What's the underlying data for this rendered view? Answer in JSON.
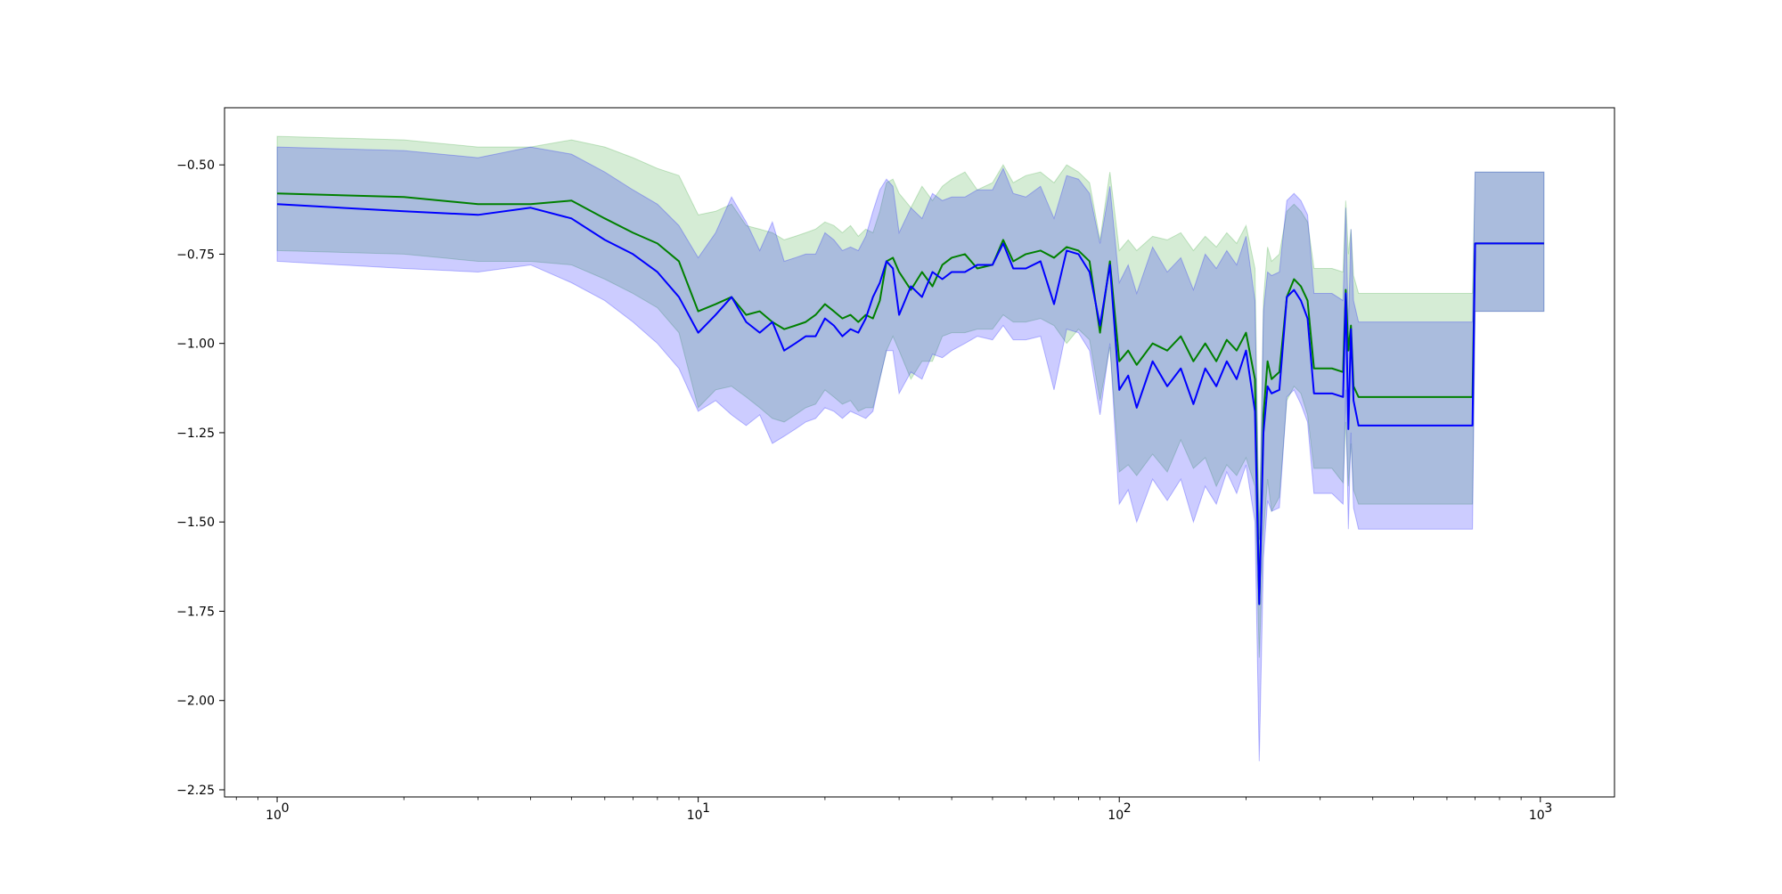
{
  "chart_data": {
    "type": "line",
    "title": "",
    "xlabel": "",
    "ylabel": "",
    "xscale": "log",
    "xlim": [
      0.75,
      1500
    ],
    "ylim": [
      -2.27,
      -0.34
    ],
    "grid": false,
    "legend": "none",
    "x_ticks": [
      {
        "value": 1,
        "base": "10",
        "exp": "0"
      },
      {
        "value": 10,
        "base": "10",
        "exp": "1"
      },
      {
        "value": 100,
        "base": "10",
        "exp": "2"
      },
      {
        "value": 1000,
        "base": "10",
        "exp": "3"
      }
    ],
    "y_ticks": [
      {
        "value": -0.5,
        "label": "−0.50"
      },
      {
        "value": -0.75,
        "label": "−0.75"
      },
      {
        "value": -1.0,
        "label": "−1.00"
      },
      {
        "value": -1.25,
        "label": "−1.25"
      },
      {
        "value": -1.5,
        "label": "−1.50"
      },
      {
        "value": -1.75,
        "label": "−1.75"
      },
      {
        "value": -2.0,
        "label": "−2.00"
      },
      {
        "value": -2.25,
        "label": "−2.25"
      }
    ],
    "series": [
      {
        "color": "#008000",
        "band_color": "#2ca02c",
        "x": [
          1,
          2,
          3,
          4,
          5,
          6,
          7,
          8,
          9,
          10,
          11,
          12,
          13,
          14,
          15,
          16,
          17,
          18,
          19,
          20,
          21,
          22,
          23,
          24,
          25,
          26,
          27,
          28,
          29,
          30,
          32,
          34,
          36,
          38,
          40,
          43,
          46,
          50,
          53,
          56,
          60,
          65,
          70,
          75,
          80,
          85,
          90,
          95,
          100,
          105,
          110,
          120,
          130,
          140,
          150,
          160,
          170,
          180,
          190,
          200,
          210,
          215,
          220,
          225,
          230,
          240,
          250,
          260,
          270,
          280,
          290,
          300,
          320,
          340,
          345,
          350,
          355,
          360,
          370,
          380,
          690,
          700,
          1020
        ],
        "y": [
          -0.58,
          -0.59,
          -0.61,
          -0.61,
          -0.6,
          -0.65,
          -0.69,
          -0.72,
          -0.77,
          -0.91,
          -0.89,
          -0.87,
          -0.92,
          -0.91,
          -0.94,
          -0.96,
          -0.95,
          -0.94,
          -0.92,
          -0.89,
          -0.91,
          -0.93,
          -0.92,
          -0.94,
          -0.92,
          -0.93,
          -0.88,
          -0.77,
          -0.76,
          -0.8,
          -0.85,
          -0.8,
          -0.84,
          -0.78,
          -0.76,
          -0.75,
          -0.79,
          -0.78,
          -0.71,
          -0.77,
          -0.75,
          -0.74,
          -0.76,
          -0.73,
          -0.74,
          -0.77,
          -0.97,
          -0.77,
          -1.05,
          -1.02,
          -1.06,
          -1.0,
          -1.02,
          -0.98,
          -1.05,
          -1.0,
          -1.05,
          -0.99,
          -1.02,
          -0.97,
          -1.1,
          -1.73,
          -1.2,
          -1.05,
          -1.1,
          -1.08,
          -0.87,
          -0.82,
          -0.84,
          -0.88,
          -1.07,
          -1.07,
          -1.07,
          -1.08,
          -0.85,
          -1.02,
          -0.95,
          -1.12,
          -1.15,
          -1.15,
          -1.15,
          -0.72,
          -0.72
        ],
        "lower": [
          -0.74,
          -0.75,
          -0.77,
          -0.77,
          -0.78,
          -0.82,
          -0.86,
          -0.9,
          -0.97,
          -1.18,
          -1.13,
          -1.12,
          -1.15,
          -1.18,
          -1.21,
          -1.22,
          -1.2,
          -1.18,
          -1.17,
          -1.13,
          -1.15,
          -1.17,
          -1.16,
          -1.19,
          -1.18,
          -1.18,
          -1.1,
          -1.02,
          -0.98,
          -1.02,
          -1.1,
          -1.05,
          -1.05,
          -0.98,
          -0.97,
          -0.97,
          -0.96,
          -0.96,
          -0.92,
          -0.94,
          -0.94,
          -0.93,
          -0.95,
          -1.0,
          -0.96,
          -0.99,
          -1.16,
          -1.01,
          -1.36,
          -1.34,
          -1.37,
          -1.31,
          -1.36,
          -1.27,
          -1.35,
          -1.32,
          -1.4,
          -1.34,
          -1.37,
          -1.32,
          -1.4,
          -1.88,
          -1.53,
          -1.38,
          -1.47,
          -1.43,
          -1.16,
          -1.12,
          -1.14,
          -1.2,
          -1.35,
          -1.35,
          -1.35,
          -1.39,
          -1.22,
          -1.4,
          -1.28,
          -1.41,
          -1.45,
          -1.45,
          -1.45,
          -0.91,
          -0.91
        ],
        "upper": [
          -0.42,
          -0.43,
          -0.45,
          -0.45,
          -0.43,
          -0.45,
          -0.48,
          -0.51,
          -0.53,
          -0.64,
          -0.63,
          -0.61,
          -0.67,
          -0.68,
          -0.69,
          -0.71,
          -0.7,
          -0.69,
          -0.68,
          -0.66,
          -0.67,
          -0.69,
          -0.67,
          -0.7,
          -0.68,
          -0.69,
          -0.63,
          -0.55,
          -0.54,
          -0.58,
          -0.62,
          -0.56,
          -0.6,
          -0.56,
          -0.54,
          -0.52,
          -0.57,
          -0.55,
          -0.5,
          -0.55,
          -0.53,
          -0.52,
          -0.55,
          -0.5,
          -0.52,
          -0.55,
          -0.71,
          -0.52,
          -0.74,
          -0.71,
          -0.74,
          -0.7,
          -0.71,
          -0.69,
          -0.74,
          -0.7,
          -0.73,
          -0.69,
          -0.72,
          -0.67,
          -0.79,
          -1.55,
          -0.88,
          -0.73,
          -0.77,
          -0.75,
          -0.63,
          -0.61,
          -0.63,
          -0.66,
          -0.79,
          -0.79,
          -0.79,
          -0.8,
          -0.6,
          -0.75,
          -0.68,
          -0.81,
          -0.86,
          -0.86,
          -0.86,
          -0.52,
          -0.52
        ]
      },
      {
        "color": "#0000ff",
        "band_color": "#0000ff",
        "x": [
          1,
          2,
          3,
          4,
          5,
          6,
          7,
          8,
          9,
          10,
          11,
          12,
          13,
          14,
          15,
          16,
          17,
          18,
          19,
          20,
          21,
          22,
          23,
          24,
          25,
          26,
          27,
          28,
          29,
          30,
          32,
          34,
          36,
          38,
          40,
          43,
          46,
          50,
          53,
          56,
          60,
          65,
          70,
          75,
          80,
          85,
          90,
          95,
          100,
          105,
          110,
          120,
          130,
          140,
          150,
          160,
          170,
          180,
          190,
          200,
          210,
          215,
          220,
          225,
          230,
          240,
          250,
          260,
          270,
          280,
          290,
          300,
          320,
          340,
          345,
          350,
          355,
          360,
          370,
          380,
          690,
          700,
          1020
        ],
        "y": [
          -0.61,
          -0.63,
          -0.64,
          -0.62,
          -0.65,
          -0.71,
          -0.75,
          -0.8,
          -0.87,
          -0.97,
          -0.92,
          -0.87,
          -0.94,
          -0.97,
          -0.94,
          -1.02,
          -1.0,
          -0.98,
          -0.98,
          -0.93,
          -0.95,
          -0.98,
          -0.96,
          -0.97,
          -0.93,
          -0.87,
          -0.83,
          -0.77,
          -0.79,
          -0.92,
          -0.84,
          -0.87,
          -0.8,
          -0.82,
          -0.8,
          -0.8,
          -0.78,
          -0.78,
          -0.72,
          -0.79,
          -0.79,
          -0.77,
          -0.89,
          -0.74,
          -0.75,
          -0.8,
          -0.95,
          -0.78,
          -1.13,
          -1.09,
          -1.18,
          -1.05,
          -1.12,
          -1.07,
          -1.17,
          -1.07,
          -1.12,
          -1.05,
          -1.1,
          -1.02,
          -1.19,
          -1.73,
          -1.25,
          -1.12,
          -1.14,
          -1.13,
          -0.87,
          -0.85,
          -0.88,
          -0.93,
          -1.14,
          -1.14,
          -1.14,
          -1.15,
          -0.86,
          -1.24,
          -0.96,
          -1.16,
          -1.23,
          -1.23,
          -1.23,
          -0.72,
          -0.72
        ],
        "lower": [
          -0.77,
          -0.79,
          -0.8,
          -0.78,
          -0.83,
          -0.88,
          -0.94,
          -1.0,
          -1.07,
          -1.19,
          -1.16,
          -1.2,
          -1.23,
          -1.2,
          -1.28,
          -1.26,
          -1.24,
          -1.22,
          -1.21,
          -1.18,
          -1.19,
          -1.21,
          -1.19,
          -1.2,
          -1.21,
          -1.19,
          -1.1,
          -1.02,
          -1.02,
          -1.14,
          -1.08,
          -1.1,
          -1.03,
          -1.04,
          -1.02,
          -1.0,
          -0.98,
          -0.99,
          -0.95,
          -0.99,
          -0.99,
          -0.98,
          -1.13,
          -0.96,
          -0.97,
          -1.02,
          -1.2,
          -1.0,
          -1.45,
          -1.41,
          -1.5,
          -1.38,
          -1.44,
          -1.38,
          -1.5,
          -1.4,
          -1.45,
          -1.36,
          -1.42,
          -1.34,
          -1.5,
          -2.17,
          -1.6,
          -1.44,
          -1.47,
          -1.46,
          -1.15,
          -1.13,
          -1.17,
          -1.22,
          -1.42,
          -1.42,
          -1.42,
          -1.45,
          -1.13,
          -1.52,
          -1.25,
          -1.46,
          -1.52,
          -1.52,
          -1.52,
          -0.91,
          -0.91
        ],
        "upper": [
          -0.45,
          -0.46,
          -0.48,
          -0.45,
          -0.47,
          -0.52,
          -0.57,
          -0.61,
          -0.67,
          -0.76,
          -0.69,
          -0.59,
          -0.66,
          -0.74,
          -0.66,
          -0.77,
          -0.76,
          -0.75,
          -0.75,
          -0.69,
          -0.71,
          -0.74,
          -0.73,
          -0.74,
          -0.7,
          -0.63,
          -0.57,
          -0.54,
          -0.56,
          -0.69,
          -0.62,
          -0.65,
          -0.58,
          -0.6,
          -0.59,
          -0.59,
          -0.57,
          -0.57,
          -0.51,
          -0.58,
          -0.59,
          -0.56,
          -0.65,
          -0.53,
          -0.54,
          -0.58,
          -0.72,
          -0.56,
          -0.83,
          -0.78,
          -0.86,
          -0.73,
          -0.8,
          -0.76,
          -0.85,
          -0.75,
          -0.79,
          -0.74,
          -0.78,
          -0.7,
          -0.88,
          -1.55,
          -0.91,
          -0.8,
          -0.81,
          -0.8,
          -0.6,
          -0.58,
          -0.6,
          -0.64,
          -0.86,
          -0.86,
          -0.86,
          -0.88,
          -0.62,
          -0.96,
          -0.68,
          -0.88,
          -0.94,
          -0.94,
          -0.94,
          -0.52,
          -0.52
        ]
      }
    ]
  }
}
